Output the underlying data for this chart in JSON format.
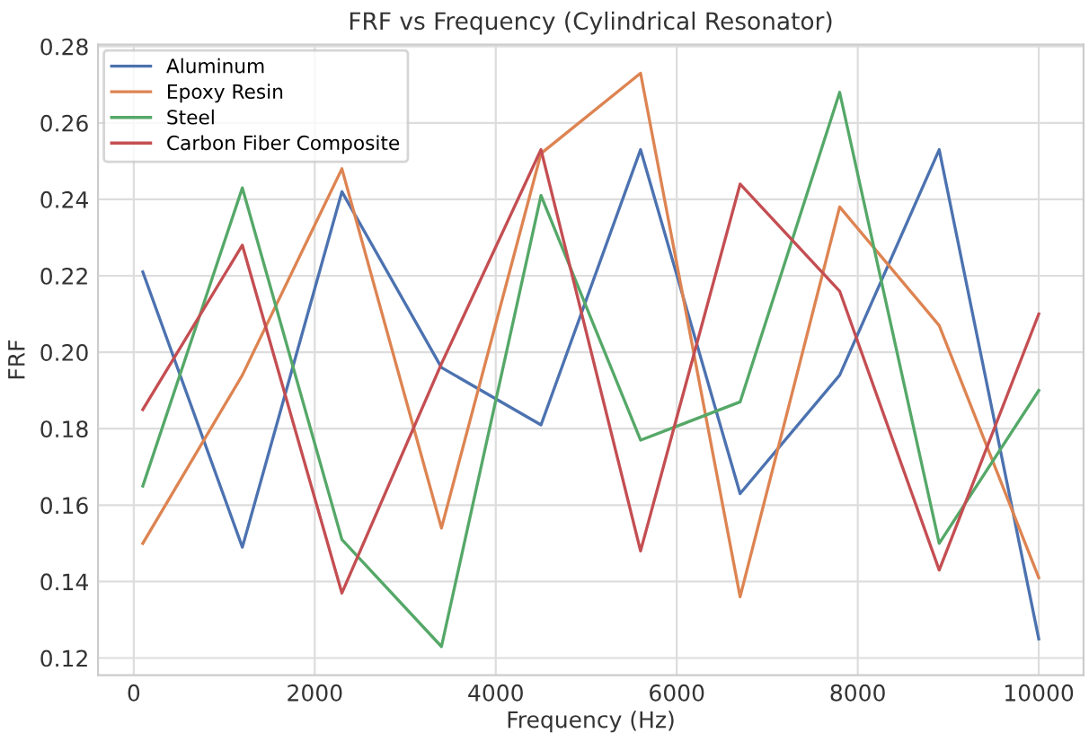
{
  "chart_data": {
    "type": "line",
    "title": "FRF vs Frequency (Cylindrical Resonator)",
    "xlabel": "Frequency (Hz)",
    "ylabel": "FRF",
    "x": [
      100,
      1200,
      2300,
      3400,
      4500,
      5600,
      6700,
      7800,
      8900,
      10000
    ],
    "series": [
      {
        "name": "Aluminum",
        "color": "#4c72b0",
        "values": [
          0.221,
          0.149,
          0.242,
          0.196,
          0.181,
          0.253,
          0.163,
          0.194,
          0.253,
          0.125
        ]
      },
      {
        "name": "Epoxy Resin",
        "color": "#dd8452",
        "values": [
          0.15,
          0.194,
          0.248,
          0.154,
          0.252,
          0.273,
          0.136,
          0.238,
          0.207,
          0.141
        ]
      },
      {
        "name": "Steel",
        "color": "#55a868",
        "values": [
          0.165,
          0.243,
          0.151,
          0.123,
          0.241,
          0.177,
          0.187,
          0.268,
          0.15,
          0.19
        ]
      },
      {
        "name": "Carbon Fiber Composite",
        "color": "#c44e52",
        "values": [
          0.185,
          0.228,
          0.137,
          0.197,
          0.253,
          0.148,
          0.244,
          0.216,
          0.143,
          0.21
        ]
      }
    ],
    "xlim": [
      -395,
      10495
    ],
    "xticks": [
      0,
      2000,
      4000,
      6000,
      8000,
      10000
    ],
    "ylim": [
      0.1155,
      0.2805
    ],
    "yticks": [
      {
        "value": 0.12,
        "label": "0.12"
      },
      {
        "value": 0.14,
        "label": "0.14"
      },
      {
        "value": 0.16,
        "label": "0.16"
      },
      {
        "value": 0.18,
        "label": "0.18"
      },
      {
        "value": 0.2,
        "label": "0.20"
      },
      {
        "value": 0.22,
        "label": "0.22"
      },
      {
        "value": 0.24,
        "label": "0.24"
      },
      {
        "value": 0.26,
        "label": "0.26"
      },
      {
        "value": 0.28,
        "label": "0.28"
      }
    ],
    "grid": true,
    "legend": "top left",
    "line_style": "solid",
    "marker": "none"
  }
}
